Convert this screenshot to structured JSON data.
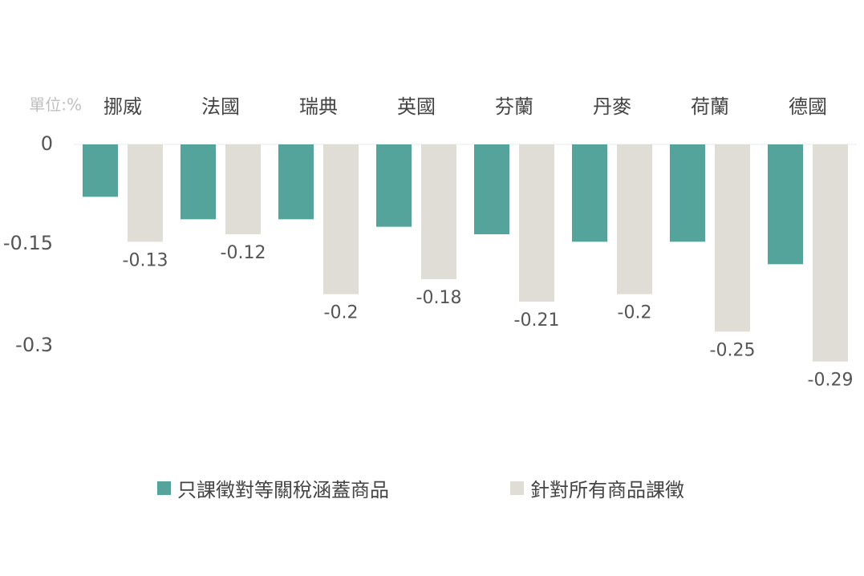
{
  "chart_data": {
    "type": "bar",
    "unit_label": "單位:%",
    "categories": [
      "挪威",
      "法國",
      "瑞典",
      "英國",
      "芬蘭",
      "丹麥",
      "荷蘭",
      "德國"
    ],
    "series": [
      {
        "name": "只課徵對等關稅涵蓋商品",
        "color": "#55a49b",
        "values": [
          -0.07,
          -0.1,
          -0.1,
          -0.11,
          -0.12,
          -0.13,
          -0.13,
          -0.16
        ],
        "labels": [
          "",
          "",
          "",
          "",
          "",
          "",
          "",
          ""
        ]
      },
      {
        "name": "針對所有商品課徵",
        "color": "#e0ddd7",
        "values": [
          -0.13,
          -0.12,
          -0.2,
          -0.18,
          -0.21,
          -0.2,
          -0.25,
          -0.29
        ],
        "labels": [
          "-0.13",
          "-0.12",
          "-0.2",
          "-0.18",
          "-0.21",
          "-0.2",
          "-0.25",
          "-0.29"
        ]
      }
    ],
    "yticks": [
      0,
      -0.15,
      -0.3
    ],
    "ytick_labels": [
      "0",
      "-0.15",
      "-0.3"
    ],
    "ylim": [
      -0.3,
      0
    ],
    "legend_position": "bottom",
    "grid": false
  }
}
